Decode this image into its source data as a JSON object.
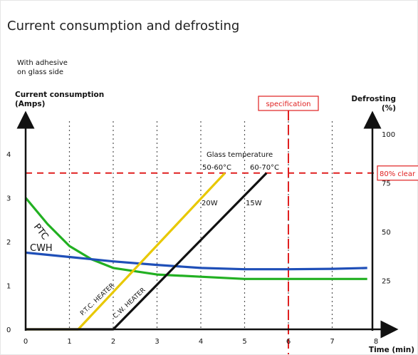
{
  "title": "Current consumption and defrosting",
  "note_lines": [
    "With adhesive",
    "on glass side"
  ],
  "chart_data": {
    "type": "line",
    "title": "Current consumption and defrosting",
    "x_axis": {
      "label": "Time (min)",
      "range": [
        0,
        8
      ],
      "ticks": [
        "0",
        "1",
        "2",
        "3",
        "4",
        "5",
        "6",
        "7",
        "8"
      ],
      "grid": "vertical dotted"
    },
    "y_left": {
      "label_lines": [
        "Current consumption",
        "(Amps)"
      ],
      "range": [
        0,
        4.6
      ],
      "ticks": [
        "0",
        "1",
        "2",
        "3",
        "4"
      ]
    },
    "y_right": {
      "label_lines": [
        "Defrosting",
        "(%)"
      ],
      "range": [
        0,
        100
      ],
      "ticks": [
        "25",
        "50",
        "75",
        "100"
      ]
    },
    "series": [
      {
        "name": "PTC",
        "axis": "left",
        "color": "#22b022",
        "points": [
          [
            0,
            3.0
          ],
          [
            0.5,
            2.4
          ],
          [
            1,
            1.9
          ],
          [
            1.5,
            1.6
          ],
          [
            2,
            1.4
          ],
          [
            3,
            1.25
          ],
          [
            4,
            1.2
          ],
          [
            5,
            1.15
          ],
          [
            6,
            1.15
          ],
          [
            7,
            1.15
          ],
          [
            7.8,
            1.15
          ]
        ]
      },
      {
        "name": "CWH",
        "axis": "left",
        "color": "#1f4fb8",
        "points": [
          [
            0,
            1.75
          ],
          [
            1,
            1.65
          ],
          [
            2,
            1.55
          ],
          [
            3,
            1.47
          ],
          [
            4,
            1.4
          ],
          [
            5,
            1.37
          ],
          [
            6,
            1.37
          ],
          [
            7,
            1.38
          ],
          [
            7.8,
            1.4
          ]
        ]
      },
      {
        "name": "P.T.C. HEATER",
        "axis": "right",
        "color": "#e8c800",
        "points": [
          [
            0,
            0
          ],
          [
            1.2,
            0
          ],
          [
            4.55,
            80
          ]
        ]
      },
      {
        "name": "C.W. HEATER",
        "axis": "right",
        "color": "#111111",
        "points": [
          [
            0,
            0
          ],
          [
            2,
            0
          ],
          [
            5.5,
            80
          ]
        ]
      }
    ],
    "annotations": {
      "glass_temperature": "Glass temperature",
      "ptc_temp": "50-60°C",
      "cw_temp": "60-70°C",
      "ptc_power": "20W",
      "cw_power": "15W",
      "specification": "specification",
      "specification_x": 6,
      "clear_label": "80% clear",
      "clear_level": 80,
      "clear_current_level": 3.5
    },
    "colors": {
      "reference_lines": "#e02020",
      "grid": "#555555"
    }
  }
}
